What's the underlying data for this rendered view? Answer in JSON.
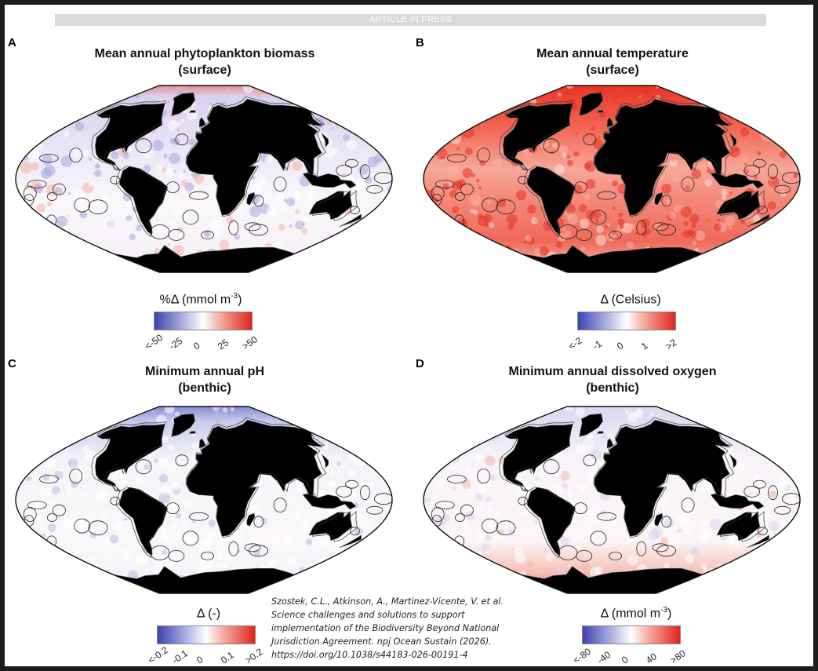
{
  "banner": "ARTICLE IN PRESS",
  "panels": [
    {
      "letter": "A",
      "title_line1": "Mean annual phytoplankton biomass",
      "title_line2": "(surface)",
      "unit_prefix": "%Δ  (mmol m",
      "unit_exp": "-3",
      "unit_suffix": ")",
      "ticks": [
        "<-50",
        "-25",
        "0",
        "25",
        ">50"
      ],
      "dominant": "mixed"
    },
    {
      "letter": "B",
      "title_line1": "Mean annual temperature",
      "title_line2": "(surface)",
      "unit_prefix": "Δ (Celsius)",
      "unit_exp": "",
      "unit_suffix": "",
      "ticks": [
        "<-2",
        "-1",
        "0",
        "1",
        ">2"
      ],
      "dominant": "warm"
    },
    {
      "letter": "C",
      "title_line1": "Minimum annual pH",
      "title_line2": "(benthic)",
      "unit_prefix": "Δ  (-)",
      "unit_exp": "",
      "unit_suffix": "",
      "ticks": [
        "<-0.2",
        "-0.1",
        "0",
        "0.1",
        ">0.2"
      ],
      "dominant": "cool"
    },
    {
      "letter": "D",
      "title_line1": "Minimum annual dissolved oxygen",
      "title_line2": "(benthic)",
      "unit_prefix": "Δ  (mmol m",
      "unit_exp": "-3",
      "unit_suffix": ")",
      "ticks": [
        "<-80",
        "-40",
        "0",
        "40",
        ">80"
      ],
      "dominant": "south-warm"
    }
  ],
  "colors": {
    "negative": "#3b44b0",
    "neutral": "#ffffff",
    "positive": "#e0231c",
    "land": "#000000"
  },
  "citation": {
    "line1": "Szostek, C.L., Atkinson, A., Martinez-Vicente, V. et al.",
    "line2": "Science challenges and solutions to support",
    "line3": "implementation of the Biodiversity Beyond National",
    "line4": "Jurisdiction Agreement. npj Ocean Sustain (2026).",
    "line5": "https://doi.org/10.1038/s44183-026-00191-4"
  }
}
